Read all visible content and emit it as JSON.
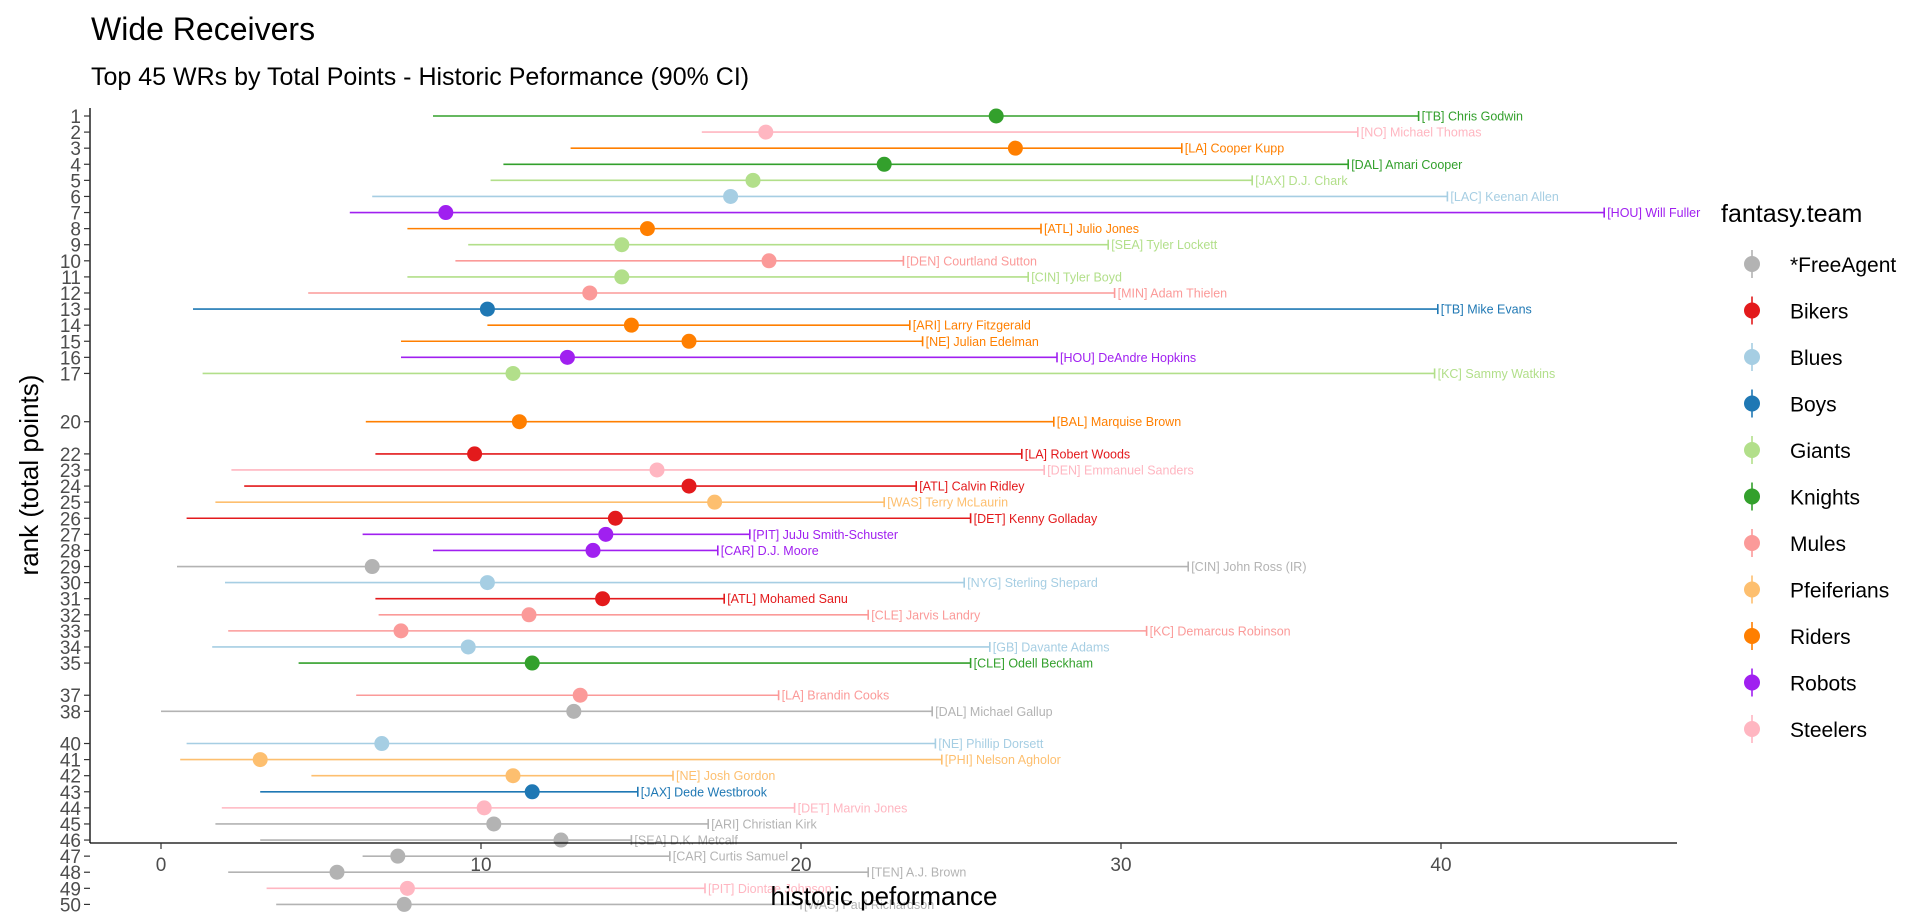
{
  "chart_data": {
    "type": "scatter",
    "title": "Wide Receivers",
    "subtitle": "Top 45 WRs by Total Points - Historic Peformance (90% CI)",
    "xlabel": "historic peformance",
    "ylabel": "rank (total points)",
    "xlim": [
      -2.2,
      47
    ],
    "xticks": [
      0,
      10,
      20,
      30,
      40
    ],
    "grid": false,
    "legend": {
      "title": "fantasy.team",
      "position": "right",
      "entries": [
        {
          "name": "*FreeAgent",
          "color": "#b3b3b3"
        },
        {
          "name": "Bikers",
          "color": "#e31a1c"
        },
        {
          "name": "Blues",
          "color": "#a6cee3"
        },
        {
          "name": "Boys",
          "color": "#1f78b4"
        },
        {
          "name": "Giants",
          "color": "#b2df8a"
        },
        {
          "name": "Knights",
          "color": "#33a02c"
        },
        {
          "name": "Mules",
          "color": "#fb9a99"
        },
        {
          "name": "Pfeiferians",
          "color": "#fdbf6f"
        },
        {
          "name": "Riders",
          "color": "#ff7f00"
        },
        {
          "name": "Robots",
          "color": "#a020f0"
        },
        {
          "name": "Steelers",
          "color": "#ffb6c1"
        }
      ]
    },
    "players": [
      {
        "rank": 1,
        "label": "[TB] Chris Godwin",
        "team": "Knights",
        "low": 8.5,
        "point": 26.1,
        "high": 39.3
      },
      {
        "rank": 2,
        "label": "[NO] Michael Thomas",
        "team": "Steelers",
        "low": 16.9,
        "point": 18.9,
        "high": 37.4
      },
      {
        "rank": 3,
        "label": "[LA] Cooper Kupp",
        "team": "Riders",
        "low": 12.8,
        "point": 26.7,
        "high": 31.9
      },
      {
        "rank": 4,
        "label": "[DAL] Amari Cooper",
        "team": "Knights",
        "low": 10.7,
        "point": 22.6,
        "high": 37.1
      },
      {
        "rank": 5,
        "label": "[JAX] D.J. Chark",
        "team": "Giants",
        "low": 10.3,
        "point": 18.5,
        "high": 34.1
      },
      {
        "rank": 6,
        "label": "[LAC] Keenan Allen",
        "team": "Blues",
        "low": 6.6,
        "point": 17.8,
        "high": 40.2
      },
      {
        "rank": 7,
        "label": "[HOU] Will Fuller",
        "team": "Robots",
        "low": 5.9,
        "point": 8.9,
        "high": 45.1
      },
      {
        "rank": 8,
        "label": "[ATL] Julio Jones",
        "team": "Riders",
        "low": 7.7,
        "point": 15.2,
        "high": 27.5
      },
      {
        "rank": 9,
        "label": "[SEA] Tyler Lockett",
        "team": "Giants",
        "low": 9.6,
        "point": 14.4,
        "high": 29.6
      },
      {
        "rank": 10,
        "label": "[DEN] Courtland Sutton",
        "team": "Mules",
        "low": 9.2,
        "point": 19.0,
        "high": 23.2
      },
      {
        "rank": 11,
        "label": "[CIN] Tyler Boyd",
        "team": "Giants",
        "low": 7.7,
        "point": 14.4,
        "high": 27.1
      },
      {
        "rank": 12,
        "label": "[MIN] Adam Thielen",
        "team": "Mules",
        "low": 4.6,
        "point": 13.4,
        "high": 29.8
      },
      {
        "rank": 13,
        "label": "[TB] Mike Evans",
        "team": "Boys",
        "low": 1.0,
        "point": 10.2,
        "high": 39.9
      },
      {
        "rank": 14,
        "label": "[ARI] Larry Fitzgerald",
        "team": "Riders",
        "low": 10.2,
        "point": 14.7,
        "high": 23.4
      },
      {
        "rank": 15,
        "label": "[NE] Julian Edelman",
        "team": "Riders",
        "low": 7.5,
        "point": 16.5,
        "high": 23.8
      },
      {
        "rank": 16,
        "label": "[HOU] DeAndre Hopkins",
        "team": "Robots",
        "low": 7.5,
        "point": 12.7,
        "high": 28.0
      },
      {
        "rank": 17,
        "label": "[KC] Sammy Watkins",
        "team": "Giants",
        "low": 1.3,
        "point": 11.0,
        "high": 39.8
      },
      {
        "rank": 20,
        "label": "[BAL] Marquise Brown",
        "team": "Riders",
        "low": 6.4,
        "point": 11.2,
        "high": 27.9
      },
      {
        "rank": 22,
        "label": "[LA] Robert Woods",
        "team": "Bikers",
        "low": 6.7,
        "point": 9.8,
        "high": 26.9
      },
      {
        "rank": 23,
        "label": "[DEN] Emmanuel Sanders",
        "team": "Steelers",
        "low": 2.2,
        "point": 15.5,
        "high": 27.6
      },
      {
        "rank": 24,
        "label": "[ATL] Calvin Ridley",
        "team": "Bikers",
        "low": 2.6,
        "point": 16.5,
        "high": 23.6
      },
      {
        "rank": 25,
        "label": "[WAS] Terry McLaurin",
        "team": "Pfeiferians",
        "low": 1.7,
        "point": 17.3,
        "high": 22.6
      },
      {
        "rank": 26,
        "label": "[DET] Kenny Golladay",
        "team": "Bikers",
        "low": 0.8,
        "point": 14.2,
        "high": 25.3
      },
      {
        "rank": 27,
        "label": "[PIT] JuJu Smith-Schuster",
        "team": "Robots",
        "low": 6.3,
        "point": 13.9,
        "high": 18.4
      },
      {
        "rank": 28,
        "label": "[CAR] D.J. Moore",
        "team": "Robots",
        "low": 8.5,
        "point": 13.5,
        "high": 17.4
      },
      {
        "rank": 29,
        "label": "[CIN] John Ross (IR)",
        "team": "*FreeAgent",
        "low": 0.5,
        "point": 6.6,
        "high": 32.1
      },
      {
        "rank": 30,
        "label": "[NYG] Sterling Shepard",
        "team": "Blues",
        "low": 2.0,
        "point": 10.2,
        "high": 25.1
      },
      {
        "rank": 31,
        "label": "[ATL] Mohamed Sanu",
        "team": "Bikers",
        "low": 6.7,
        "point": 13.8,
        "high": 17.6
      },
      {
        "rank": 32,
        "label": "[CLE] Jarvis Landry",
        "team": "Mules",
        "low": 6.8,
        "point": 11.5,
        "high": 22.1
      },
      {
        "rank": 33,
        "label": "[KC] Demarcus Robinson",
        "team": "Mules",
        "low": 2.1,
        "point": 7.5,
        "high": 30.8
      },
      {
        "rank": 34,
        "label": "[GB] Davante Adams",
        "team": "Blues",
        "low": 1.6,
        "point": 9.6,
        "high": 25.9
      },
      {
        "rank": 35,
        "label": "[CLE] Odell Beckham",
        "team": "Knights",
        "low": 4.3,
        "point": 11.6,
        "high": 25.3
      },
      {
        "rank": 37,
        "label": "[LA] Brandin Cooks",
        "team": "Mules",
        "low": 6.1,
        "point": 13.1,
        "high": 19.3
      },
      {
        "rank": 38,
        "label": "[DAL] Michael Gallup",
        "team": "*FreeAgent",
        "low": 0.0,
        "point": 12.9,
        "high": 24.1
      },
      {
        "rank": 40,
        "label": "[NE] Phillip Dorsett",
        "team": "Blues",
        "low": 0.8,
        "point": 6.9,
        "high": 24.2
      },
      {
        "rank": 41,
        "label": "[PHI] Nelson Agholor",
        "team": "Pfeiferians",
        "low": 0.6,
        "point": 3.1,
        "high": 24.4
      },
      {
        "rank": 42,
        "label": "[NE] Josh Gordon",
        "team": "Pfeiferians",
        "low": 4.7,
        "point": 11.0,
        "high": 16.0
      },
      {
        "rank": 43,
        "label": "[JAX] Dede Westbrook",
        "team": "Boys",
        "low": 3.1,
        "point": 11.6,
        "high": 14.9
      },
      {
        "rank": 44,
        "label": "[DET] Marvin Jones",
        "team": "Steelers",
        "low": 1.9,
        "point": 10.1,
        "high": 19.8
      },
      {
        "rank": 45,
        "label": "[ARI] Christian Kirk",
        "team": "*FreeAgent",
        "low": 1.7,
        "point": 10.4,
        "high": 17.1
      },
      {
        "rank": 46,
        "label": "[SEA] D.K. Metcalf",
        "team": "*FreeAgent",
        "low": 3.1,
        "point": 12.5,
        "high": 14.7
      },
      {
        "rank": 47,
        "label": "[CAR] Curtis Samuel",
        "team": "*FreeAgent",
        "low": 6.3,
        "point": 7.4,
        "high": 15.9
      },
      {
        "rank": 48,
        "label": "[TEN] A.J. Brown",
        "team": "*FreeAgent",
        "low": 2.1,
        "point": 5.5,
        "high": 22.1
      },
      {
        "rank": 49,
        "label": "[PIT] Diontae Johnson",
        "team": "Steelers",
        "low": 3.3,
        "point": 7.7,
        "high": 17.0
      },
      {
        "rank": 50,
        "label": "[WAS] Paul Richardson",
        "team": "*FreeAgent",
        "low": 3.6,
        "point": 7.6,
        "high": 20.0
      }
    ]
  }
}
